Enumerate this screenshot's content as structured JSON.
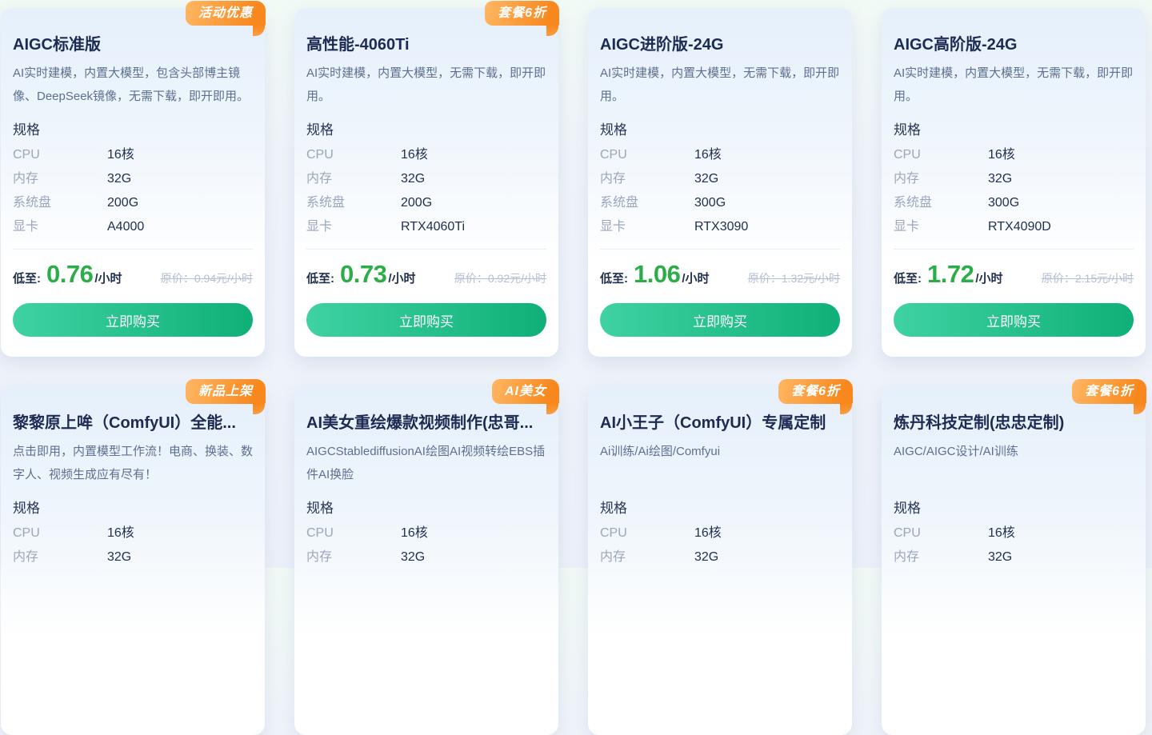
{
  "colors": {
    "accent_green": "#2bad48",
    "button_green_start": "#3fd2a3",
    "button_green_end": "#0fb077",
    "badge_orange_start": "#ffb763",
    "badge_orange_end": "#f8881e",
    "title_navy": "#1d2b52",
    "description_gray_blue": "#5e6f91",
    "spec_label_gray": "#9aa6bc",
    "original_price_gray": "#b5bfd3",
    "card_top_tint": "#e6f0fb"
  },
  "shared": {
    "specs_heading": "规格",
    "price_prefix": "低至:",
    "price_unit": "/小时",
    "buy_label": "立即购买"
  },
  "cards": [
    {
      "badge": "活动优惠",
      "title": "AIGC标准版",
      "description": "AI实时建模，内置大模型，包含头部博主镜像、DeepSeek镜像，无需下载，即开即用。",
      "specs": [
        {
          "label": "CPU",
          "value": "16核"
        },
        {
          "label": "内存",
          "value": "32G"
        },
        {
          "label": "系统盘",
          "value": "200G"
        },
        {
          "label": "显卡",
          "value": "A4000"
        }
      ],
      "price": "0.76",
      "original_price": "原价：0.94元/小时"
    },
    {
      "badge": "套餐6折",
      "title": "高性能-4060Ti",
      "description": "AI实时建模，内置大模型，无需下载，即开即用。",
      "specs": [
        {
          "label": "CPU",
          "value": "16核"
        },
        {
          "label": "内存",
          "value": "32G"
        },
        {
          "label": "系统盘",
          "value": "200G"
        },
        {
          "label": "显卡",
          "value": "RTX4060Ti"
        }
      ],
      "price": "0.73",
      "original_price": "原价：0.92元/小时"
    },
    {
      "title": "AIGC进阶版-24G",
      "description": "AI实时建模，内置大模型，无需下载，即开即用。",
      "specs": [
        {
          "label": "CPU",
          "value": "16核"
        },
        {
          "label": "内存",
          "value": "32G"
        },
        {
          "label": "系统盘",
          "value": "300G"
        },
        {
          "label": "显卡",
          "value": "RTX3090"
        }
      ],
      "price": "1.06",
      "original_price": "原价：1.32元/小时"
    },
    {
      "title": "AIGC高阶版-24G",
      "description": "AI实时建模，内置大模型，无需下载，即开即用。",
      "specs": [
        {
          "label": "CPU",
          "value": "16核"
        },
        {
          "label": "内存",
          "value": "32G"
        },
        {
          "label": "系统盘",
          "value": "300G"
        },
        {
          "label": "显卡",
          "value": "RTX4090D"
        }
      ],
      "price": "1.72",
      "original_price": "原价：2.15元/小时"
    },
    {
      "badge": "新品上架",
      "title": "黎黎原上哞（ComfyUI）全能...",
      "description": "点击即用，内置模型工作流！电商、换装、数字人、视频生成应有尽有！",
      "specs": [
        {
          "label": "CPU",
          "value": "16核"
        },
        {
          "label": "内存",
          "value": "32G"
        }
      ]
    },
    {
      "badge": "AI美女",
      "title": "AI美女重绘爆款视频制作(忠哥...",
      "description": "AIGCStablediffusionAI绘图AI视频转绘EBS插件AI换脸",
      "specs": [
        {
          "label": "CPU",
          "value": "16核"
        },
        {
          "label": "内存",
          "value": "32G"
        }
      ]
    },
    {
      "badge": "套餐6折",
      "title": "AI小王子（ComfyUI）专属定制",
      "description": "Ai训练/Ai绘图/Comfyui",
      "specs": [
        {
          "label": "CPU",
          "value": "16核"
        },
        {
          "label": "内存",
          "value": "32G"
        }
      ]
    },
    {
      "badge": "套餐6折",
      "title": "炼丹科技定制(忠忠定制)",
      "description": "AIGC/AIGC设计/AI训练",
      "specs": [
        {
          "label": "CPU",
          "value": "16核"
        },
        {
          "label": "内存",
          "value": "32G"
        }
      ]
    }
  ]
}
